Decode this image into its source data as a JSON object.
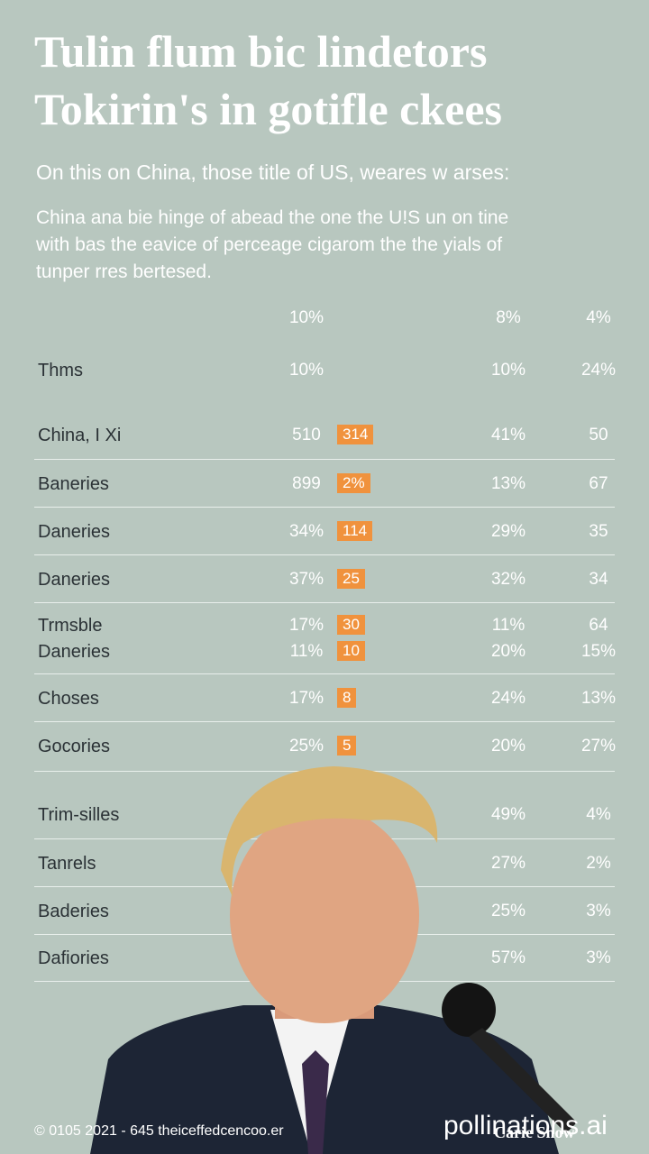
{
  "header": {
    "title": [
      "Tulin flum bic lindetors",
      "Tokirin's in gotifle ckees"
    ],
    "subtitle": "On this on China, those title of US, weares w arses:",
    "body": [
      "China ana bie hinge of abead the one the U!S un on tine",
      "with bas the eavice of perceage cigarom the the yials of",
      "tunper rres bertesed."
    ]
  },
  "table": {
    "columns": {
      "a": "10%",
      "c": "8%",
      "d": "4%"
    },
    "rows": [
      {
        "label": "Thms",
        "a": "10%",
        "c": "10%",
        "d": "24%"
      },
      {
        "label": "China, I Xi",
        "a": "510",
        "bar": "314",
        "c": "41%",
        "d": "50"
      },
      {
        "label": "Baneries",
        "a": "899",
        "bar": "2%",
        "c": "13%",
        "d": "67"
      },
      {
        "label": "Daneries",
        "a": "34%",
        "bar": "114",
        "c": "29%",
        "d": "35"
      },
      {
        "label": "Daneries",
        "a": "37%",
        "bar": "25",
        "c": "32%",
        "d": "34"
      },
      {
        "label": "Trmsble",
        "a": "17%",
        "bar": "30",
        "c": "11%",
        "d": "64"
      },
      {
        "label": "Daneries",
        "a": "11%",
        "bar": "10",
        "c": "20%",
        "d": "15%"
      },
      {
        "label": "Choses",
        "a": "17%",
        "bar": "8",
        "c": "24%",
        "d": "13%"
      },
      {
        "label": "Gocories",
        "a": "25%",
        "bar": "5",
        "c": "20%",
        "d": "27%"
      },
      {
        "label": "Trim-silles",
        "c": "49%",
        "d": "4%"
      },
      {
        "label": "Tanrels",
        "c": "27%",
        "d": "2%"
      },
      {
        "label": "Baderies",
        "c": "25%",
        "d": "3%"
      },
      {
        "label": "Dafiories",
        "c": "57%",
        "d": "3%"
      }
    ]
  },
  "footer": {
    "copyright": "© 0105 2021 - 645 theiceffedcencoo.er",
    "watermark": "pollinations.ai",
    "name": "Carie Snow"
  }
}
